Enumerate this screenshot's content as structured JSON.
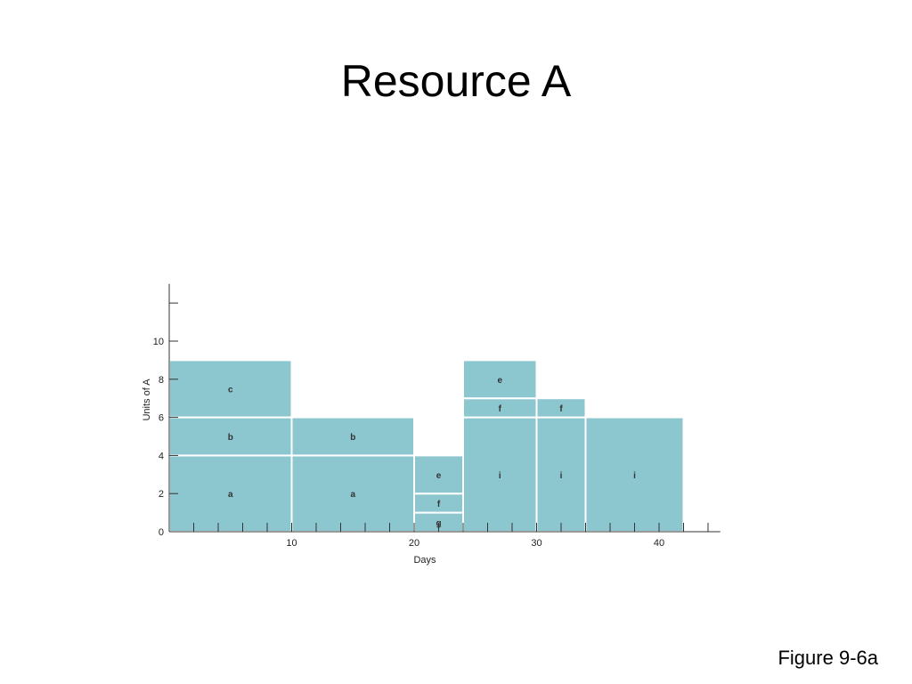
{
  "slide": {
    "title": "Resource A",
    "caption": "Figure 9-6a"
  },
  "chart_data": {
    "type": "bar",
    "subtype": "resource-loading-histogram",
    "xlabel": "Days",
    "ylabel": "Units of A",
    "xlim": [
      0,
      45
    ],
    "ylim": [
      0,
      13
    ],
    "x_ticks": [
      10,
      20,
      30,
      40
    ],
    "y_ticks": [
      0,
      2,
      4,
      6,
      8,
      10
    ],
    "grid": false,
    "legend": "none",
    "fill_color": "#8cc6ce",
    "segments": [
      {
        "label": "a",
        "x0": 0,
        "x1": 10,
        "y0": 0,
        "y1": 4
      },
      {
        "label": "b",
        "x0": 0,
        "x1": 10,
        "y0": 4,
        "y1": 6
      },
      {
        "label": "c",
        "x0": 0,
        "x1": 10,
        "y0": 6,
        "y1": 9
      },
      {
        "label": "a",
        "x0": 10,
        "x1": 20,
        "y0": 0,
        "y1": 4
      },
      {
        "label": "b",
        "x0": 10,
        "x1": 20,
        "y0": 4,
        "y1": 6
      },
      {
        "label": "g",
        "x0": 20,
        "x1": 24,
        "y0": 0,
        "y1": 1
      },
      {
        "label": "f",
        "x0": 20,
        "x1": 24,
        "y0": 1,
        "y1": 2
      },
      {
        "label": "e",
        "x0": 20,
        "x1": 24,
        "y0": 2,
        "y1": 4
      },
      {
        "label": "i",
        "x0": 24,
        "x1": 30,
        "y0": 0,
        "y1": 6
      },
      {
        "label": "f",
        "x0": 24,
        "x1": 30,
        "y0": 6,
        "y1": 7
      },
      {
        "label": "e",
        "x0": 24,
        "x1": 30,
        "y0": 7,
        "y1": 9
      },
      {
        "label": "i",
        "x0": 30,
        "x1": 34,
        "y0": 0,
        "y1": 6
      },
      {
        "label": "f",
        "x0": 30,
        "x1": 34,
        "y0": 6,
        "y1": 7
      },
      {
        "label": "i",
        "x0": 34,
        "x1": 42,
        "y0": 0,
        "y1": 6
      }
    ]
  }
}
